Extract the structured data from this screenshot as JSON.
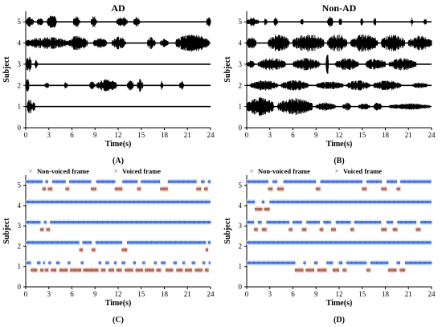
{
  "colors": {
    "waveform": "#000000",
    "non_voiced": "#a05b3c",
    "non_voiced_fill": "#f4c8c8",
    "voiced": "#3b5bdb",
    "voiced_fill": "#cfe7f7"
  },
  "chart_data": [
    {
      "id": "A",
      "type": "line",
      "title": "AD",
      "xlabel": "Time(s)",
      "ylabel": "Subject",
      "panel_label": "(A)",
      "xlim": [
        0,
        24
      ],
      "ylim": [
        0,
        5.5
      ],
      "xticks": [
        "0",
        "3",
        "6",
        "9",
        "12",
        "15",
        "18",
        "21",
        "24"
      ],
      "yticks": [
        "0",
        "1",
        "2",
        "3",
        "4",
        "5"
      ],
      "subjects": [
        {
          "subject": 1,
          "bursts": [
            [
              0.2,
              0.8,
              0.35
            ],
            [
              0.9,
              1.2,
              0.25
            ]
          ]
        },
        {
          "subject": 2,
          "bursts": [
            [
              0.0,
              0.4,
              0.4
            ],
            [
              2.5,
              3.0,
              0.15
            ],
            [
              5.0,
              5.4,
              0.15
            ],
            [
              8.3,
              9.0,
              0.2
            ],
            [
              9.2,
              11.8,
              0.3
            ],
            [
              13.2,
              14.0,
              0.25
            ],
            [
              14.5,
              15.2,
              0.3
            ],
            [
              17.5,
              17.8,
              0.2
            ],
            [
              20.0,
              20.5,
              0.25
            ]
          ]
        },
        {
          "subject": 3,
          "bursts": [
            [
              0.1,
              0.7,
              0.4
            ],
            [
              1.2,
              1.5,
              0.2
            ]
          ]
        },
        {
          "subject": 4,
          "bursts": [
            [
              0.0,
              5.5,
              0.3
            ],
            [
              5.5,
              8.0,
              0.35
            ],
            [
              8.8,
              10.5,
              0.25
            ],
            [
              11.2,
              13.0,
              0.3
            ],
            [
              15.8,
              16.8,
              0.3
            ],
            [
              17.5,
              18.5,
              0.2
            ],
            [
              19.5,
              23.8,
              0.42
            ]
          ]
        },
        {
          "subject": 5,
          "bursts": [
            [
              0.0,
              1.0,
              0.25
            ],
            [
              1.5,
              2.2,
              0.2
            ],
            [
              2.8,
              4.0,
              0.35
            ],
            [
              6.2,
              7.0,
              0.3
            ],
            [
              8.5,
              9.2,
              0.3
            ],
            [
              11.8,
              13.2,
              0.25
            ],
            [
              14.0,
              14.8,
              0.25
            ],
            [
              23.5,
              24.0,
              0.3
            ]
          ]
        }
      ]
    },
    {
      "id": "B",
      "type": "line",
      "title": "Non-AD",
      "xlabel": "Time(s)",
      "ylabel": "Subject",
      "panel_label": "(B)",
      "xlim": [
        0,
        24
      ],
      "ylim": [
        0,
        5.5
      ],
      "xticks": [
        "0",
        "3",
        "6",
        "9",
        "12",
        "15",
        "18",
        "21",
        "24"
      ],
      "yticks": [
        "0",
        "1",
        "2",
        "3",
        "4",
        "5"
      ],
      "subjects": [
        {
          "subject": 1,
          "bursts": [
            [
              0.0,
              3.5,
              0.45
            ],
            [
              4.0,
              8.5,
              0.4
            ],
            [
              9.0,
              11.5,
              0.2
            ],
            [
              12.5,
              13.5,
              0.2
            ],
            [
              14.5,
              16.0,
              0.15
            ],
            [
              16.5,
              17.5,
              0.2
            ],
            [
              18.5,
              23.8,
              0.15
            ]
          ]
        },
        {
          "subject": 2,
          "bursts": [
            [
              0.5,
              4.0,
              0.25
            ],
            [
              4.5,
              8.0,
              0.25
            ],
            [
              9.0,
              12.5,
              0.2
            ],
            [
              13.0,
              16.0,
              0.25
            ],
            [
              16.5,
              20.0,
              0.25
            ],
            [
              21.5,
              23.5,
              0.15
            ]
          ]
        },
        {
          "subject": 3,
          "bursts": [
            [
              0.0,
              1.0,
              0.2
            ],
            [
              1.5,
              5.0,
              0.3
            ],
            [
              6.0,
              9.5,
              0.3
            ],
            [
              10.3,
              10.6,
              0.6
            ],
            [
              11.5,
              14.5,
              0.3
            ],
            [
              15.5,
              18.0,
              0.3
            ],
            [
              18.5,
              22.0,
              0.3
            ]
          ]
        },
        {
          "subject": 4,
          "bursts": [
            [
              0.0,
              1.2,
              0.3
            ],
            [
              2.8,
              5.5,
              0.42
            ],
            [
              6.0,
              10.0,
              0.42
            ],
            [
              10.5,
              13.0,
              0.42
            ],
            [
              13.5,
              17.0,
              0.42
            ],
            [
              17.5,
              20.5,
              0.42
            ],
            [
              21.0,
              24.0,
              0.35
            ]
          ]
        },
        {
          "subject": 5,
          "bursts": [
            [
              0.0,
              1.5,
              0.2
            ],
            [
              2.3,
              2.6,
              0.2
            ],
            [
              3.5,
              4.0,
              0.2
            ],
            [
              7.0,
              7.3,
              0.2
            ],
            [
              10.5,
              11.2,
              0.25
            ],
            [
              12.0,
              12.3,
              0.2
            ],
            [
              14.8,
              15.1,
              0.2
            ],
            [
              16.5,
              16.8,
              0.2
            ],
            [
              21.3,
              21.6,
              0.2
            ],
            [
              23.0,
              23.3,
              0.2
            ]
          ]
        }
      ]
    },
    {
      "id": "C",
      "type": "scatter",
      "xlabel": "Time(s)",
      "ylabel": "Subject",
      "panel_label": "(C)",
      "xlim": [
        0,
        24
      ],
      "ylim": [
        0,
        5.5
      ],
      "xticks": [
        "0",
        "3",
        "6",
        "9",
        "12",
        "15",
        "18",
        "21",
        "24"
      ],
      "yticks": [
        "0",
        "1",
        "2",
        "3",
        "4",
        "5"
      ],
      "legend": [
        "Non-voiced frame",
        "Voiced frame"
      ],
      "subjects": [
        {
          "subject": 1,
          "voiced": [
            [
              0.0,
              0.7
            ],
            [
              1.5,
              1.9
            ],
            [
              2.3,
              2.5
            ],
            [
              3.0,
              3.3
            ],
            [
              4.0,
              4.4
            ],
            [
              5.5,
              5.8
            ],
            [
              7.2,
              7.5
            ],
            [
              9.5,
              9.8
            ],
            [
              10.4,
              10.8
            ],
            [
              11.5,
              11.8
            ],
            [
              12.5,
              12.9
            ],
            [
              14.0,
              14.3
            ],
            [
              15.2,
              15.5
            ],
            [
              16.7,
              17.0
            ],
            [
              17.6,
              18.2
            ],
            [
              19.2,
              19.6
            ],
            [
              20.4,
              20.7
            ],
            [
              21.6,
              22.0
            ],
            [
              23.0,
              23.3
            ],
            [
              23.8,
              24.0
            ]
          ]
        },
        {
          "subject": 2,
          "voiced": [
            [
              0.0,
              7.0
            ],
            [
              7.4,
              8.6
            ],
            [
              9.1,
              12.5
            ],
            [
              13.2,
              23.4
            ],
            [
              23.7,
              24.0
            ]
          ]
        },
        {
          "subject": 3,
          "voiced": [
            [
              0.0,
              1.9
            ],
            [
              2.4,
              2.7
            ],
            [
              3.2,
              24.0
            ]
          ]
        },
        {
          "subject": 4,
          "voiced": [
            [
              0.0,
              24.0
            ]
          ]
        },
        {
          "subject": 5,
          "voiced": [
            [
              0.0,
              2.2
            ],
            [
              2.6,
              2.9
            ],
            [
              3.5,
              5.2
            ],
            [
              5.7,
              8.5
            ],
            [
              9.2,
              11.6
            ],
            [
              12.6,
              14.5
            ],
            [
              15.0,
              17.5
            ],
            [
              18.5,
              22.2
            ],
            [
              22.8,
              23.2
            ],
            [
              23.7,
              24.0
            ]
          ]
        }
      ]
    },
    {
      "id": "D",
      "type": "scatter",
      "xlabel": "Time(s)",
      "ylabel": "Subject",
      "panel_label": "(D)",
      "xlim": [
        0,
        24
      ],
      "ylim": [
        0,
        5.5
      ],
      "xticks": [
        "0",
        "3",
        "6",
        "9",
        "12",
        "15",
        "18",
        "21",
        "24"
      ],
      "yticks": [
        "0",
        "1",
        "2",
        "3",
        "4",
        "5"
      ],
      "legend": [
        "Non-voiced frame",
        "Voiced frame"
      ],
      "subjects": [
        {
          "subject": 1,
          "voiced": [
            [
              0.0,
              6.3
            ],
            [
              7.4,
              7.7
            ],
            [
              8.8,
              9.2
            ],
            [
              10.4,
              11.2
            ],
            [
              12.0,
              12.5
            ],
            [
              13.0,
              15.6
            ],
            [
              16.1,
              18.4
            ],
            [
              19.5,
              19.9
            ],
            [
              20.6,
              24.0
            ]
          ]
        },
        {
          "subject": 2,
          "voiced": [
            [
              0.0,
              24.0
            ]
          ]
        },
        {
          "subject": 3,
          "voiced": [
            [
              0.0,
              1.0
            ],
            [
              1.5,
              2.0
            ],
            [
              2.6,
              5.5
            ],
            [
              6.0,
              7.2
            ],
            [
              7.8,
              9.5
            ],
            [
              10.0,
              11.0
            ],
            [
              11.6,
              13.5
            ],
            [
              14.0,
              17.5
            ],
            [
              18.2,
              19.0
            ],
            [
              19.6,
              22.0
            ],
            [
              22.6,
              24.0
            ]
          ]
        },
        {
          "subject": 4,
          "voiced": [
            [
              0.0,
              1.1
            ],
            [
              2.0,
              2.3
            ],
            [
              3.0,
              24.0
            ]
          ]
        },
        {
          "subject": 5,
          "voiced": [
            [
              0.0,
              2.8
            ],
            [
              3.4,
              4.0
            ],
            [
              4.8,
              9.0
            ],
            [
              9.6,
              15.0
            ],
            [
              15.6,
              17.5
            ],
            [
              18.2,
              19.5
            ],
            [
              20.0,
              24.0
            ]
          ]
        }
      ]
    }
  ]
}
